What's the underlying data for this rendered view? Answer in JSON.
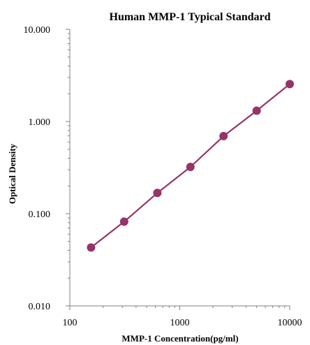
{
  "chart_data": {
    "type": "line",
    "title": "Human  MMP-1 Typical Standard",
    "xlabel": "MMP-1  Concentration(pg/ml)",
    "ylabel": "Optical Density",
    "x_scale": "log",
    "y_scale": "log",
    "xlim": [
      100,
      10000
    ],
    "ylim": [
      0.01,
      10
    ],
    "x_ticks": [
      "100",
      "1000",
      "10000"
    ],
    "y_ticks": [
      "0.010",
      "0.100",
      "1.000",
      "10.000"
    ],
    "grid": false,
    "legend": "none",
    "series": [
      {
        "color": "#953468",
        "x": [
          156,
          312,
          625,
          1250,
          2500,
          5000,
          10000
        ],
        "y": [
          0.043,
          0.082,
          0.168,
          0.322,
          0.695,
          1.31,
          2.55
        ]
      }
    ]
  }
}
